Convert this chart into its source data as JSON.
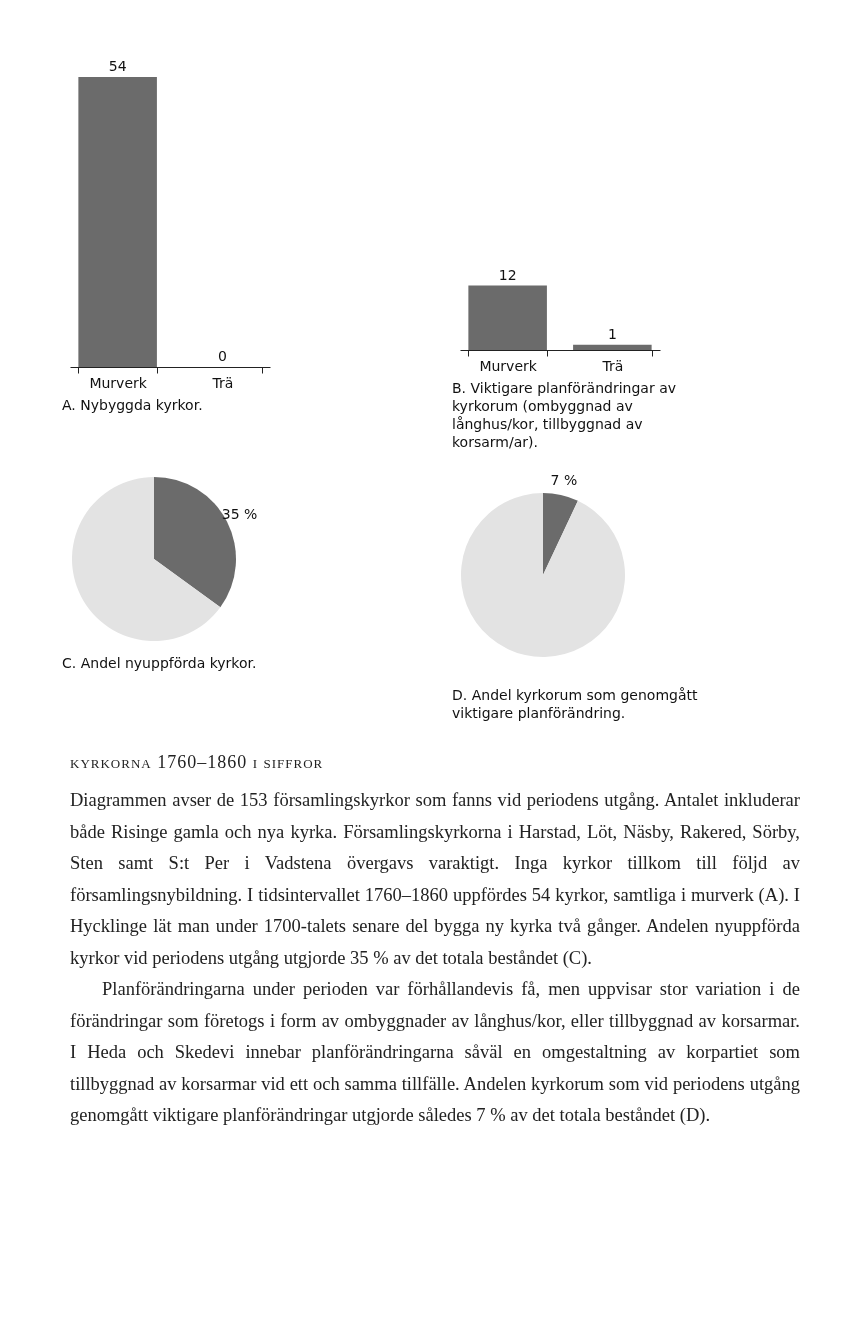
{
  "chart_data": [
    {
      "type": "bar",
      "title": "A. Nybyggda kyrkor.",
      "categories": [
        "Murverk",
        "Trä"
      ],
      "values": [
        54,
        0
      ],
      "color": "#6b6b6b",
      "data_labels": true
    },
    {
      "type": "bar",
      "title": "B. Viktigare planförändringar av kyrkorum (ombyggnad av långhus/kor, tillbyggnad av korsarm/ar).",
      "categories": [
        "Murverk",
        "Trä"
      ],
      "values": [
        12,
        1
      ],
      "color": "#6b6b6b",
      "data_labels": true
    },
    {
      "type": "pie",
      "title": "C. Andel nyuppförda kyrkor.",
      "categories": [
        null,
        null
      ],
      "values": [
        35,
        65
      ],
      "colors": [
        "#6b6b6b",
        "#e3e3e3"
      ],
      "value_labels": [
        "35 %",
        null
      ]
    },
    {
      "type": "pie",
      "title": "D. Andel kyrkorum som genomgått viktigare planförändring.",
      "categories": [
        null,
        null
      ],
      "values": [
        7,
        93
      ],
      "colors": [
        "#6b6b6b",
        "#e3e3e3"
      ],
      "value_labels": [
        "7 %",
        null
      ]
    },
    {
      "type": "other",
      "title": "kyrkorna 1760–1860 i siffror",
      "annotations": [
        "Diagrammen avser de 153 församlingskyrkor som fanns vid periodens utgång. Antalet inkluderar både Risinge gamla och nya kyrka. Församlingskyrkorna i Harstad, Löt, Näsby, Rakered, Sörby, Sten samt S:t Per i Vadstena övergavs varaktigt. Inga kyrkor tillkom till följd av församlingsnybildning. I tidsintervallet 1760–1860 uppfördes 54 kyrkor, samtliga i murverk (A). I Hycklinge lät man under 1700-talets senare del bygga ny kyrka två gånger. Andelen nyuppförda kyrkor vid periodens utgång utgjorde 35 % av det totala beståndet (C).",
        "Planförändringarna under perioden var förhållandevis få, men uppvisar stor variation i de förändringar som företogs i form av ombyggnader av långhus/kor, eller tillbyggnad av korsarmar. I Heda och Skedevi innebar planförändringarna såväl en omgestaltning av korpartiet som tillbyggnad av korsarmar vid ett och samma tillfälle. Andelen kyrkorum som vid periodens utgång genomgått viktigare planförändringar utgjorde således 7 % av det totala beståndet (D)."
      ]
    }
  ]
}
